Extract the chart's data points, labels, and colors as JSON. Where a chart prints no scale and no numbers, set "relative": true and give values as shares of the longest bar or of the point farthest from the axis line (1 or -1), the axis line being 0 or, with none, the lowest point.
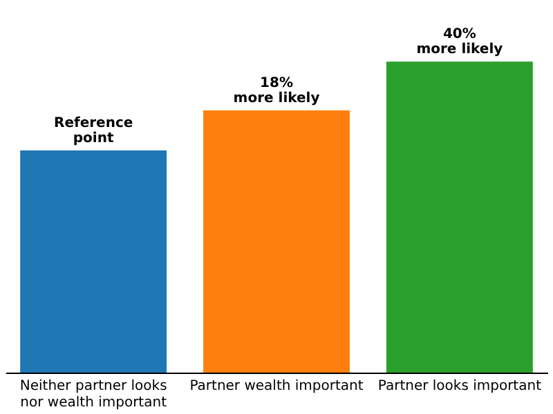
{
  "chart_data": {
    "type": "bar",
    "relative": true,
    "categories": [
      "Neither partner looks\nnor wealth important",
      "Partner wealth important",
      "Partner looks important"
    ],
    "values": [
      0.714,
      0.843,
      1
    ],
    "colors": [
      "#1f77b4",
      "#ff7f0e",
      "#2ca02c"
    ],
    "annotations": [
      {
        "text": "Reference\npoint",
        "x": "Neither partner looks\nnor wealth important",
        "y": 0.714
      },
      {
        "text": "18%\nmore likely",
        "x": "Partner wealth important",
        "y": 0.843
      },
      {
        "text": "40%\nmore likely",
        "x": "Partner looks important",
        "y": 1
      }
    ],
    "grid": false,
    "legend": false
  }
}
